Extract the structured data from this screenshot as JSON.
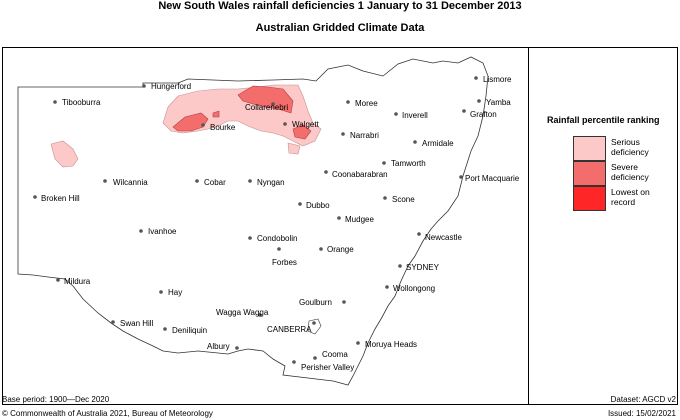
{
  "title_line1": "New South Wales rainfall deficiencies   1 January to 31 December 2013",
  "title_line2": "Australian Gridded Climate Data",
  "legend": {
    "title": "Rainfall percentile ranking",
    "items": [
      {
        "label": "Serious deficiency",
        "color": "#fcc8c8"
      },
      {
        "label": "Severe deficiency",
        "color": "#f46d6d"
      },
      {
        "label": "Lowest on record",
        "color": "#fe2626"
      }
    ]
  },
  "footer": {
    "base_period": "Base period: 1900—Dec 2020",
    "dataset": "Dataset: AGCD v2",
    "copyright": "© Commonwealth of Australia 2021, Bureau of Meteorology",
    "issued": "Issued: 15/02/2021"
  },
  "towns": [
    "Hungerford",
    "Tibooburra",
    "Collarenebri",
    "Moree",
    "Bourke",
    "Walgett",
    "Inverell",
    "Narrabri",
    "Armidale",
    "Lismore",
    "Yamba",
    "Grafton",
    "Tamworth",
    "Coonabarabran",
    "Port Macquarie",
    "Wilcannia",
    "Cobar",
    "Nyngan",
    "Broken Hill",
    "Dubbo",
    "Scone",
    "Mudgee",
    "Newcastle",
    "Ivanhoe",
    "Condobolin",
    "Forbes",
    "Orange",
    "SYDNEY",
    "Wollongong",
    "Mildura",
    "Hay",
    "Goulburn",
    "Swan Hill",
    "Deniliquin",
    "Wagga Wagga",
    "CANBERRA",
    "Albury",
    "Cooma",
    "Perisher Valley",
    "Moruya Heads"
  ]
}
